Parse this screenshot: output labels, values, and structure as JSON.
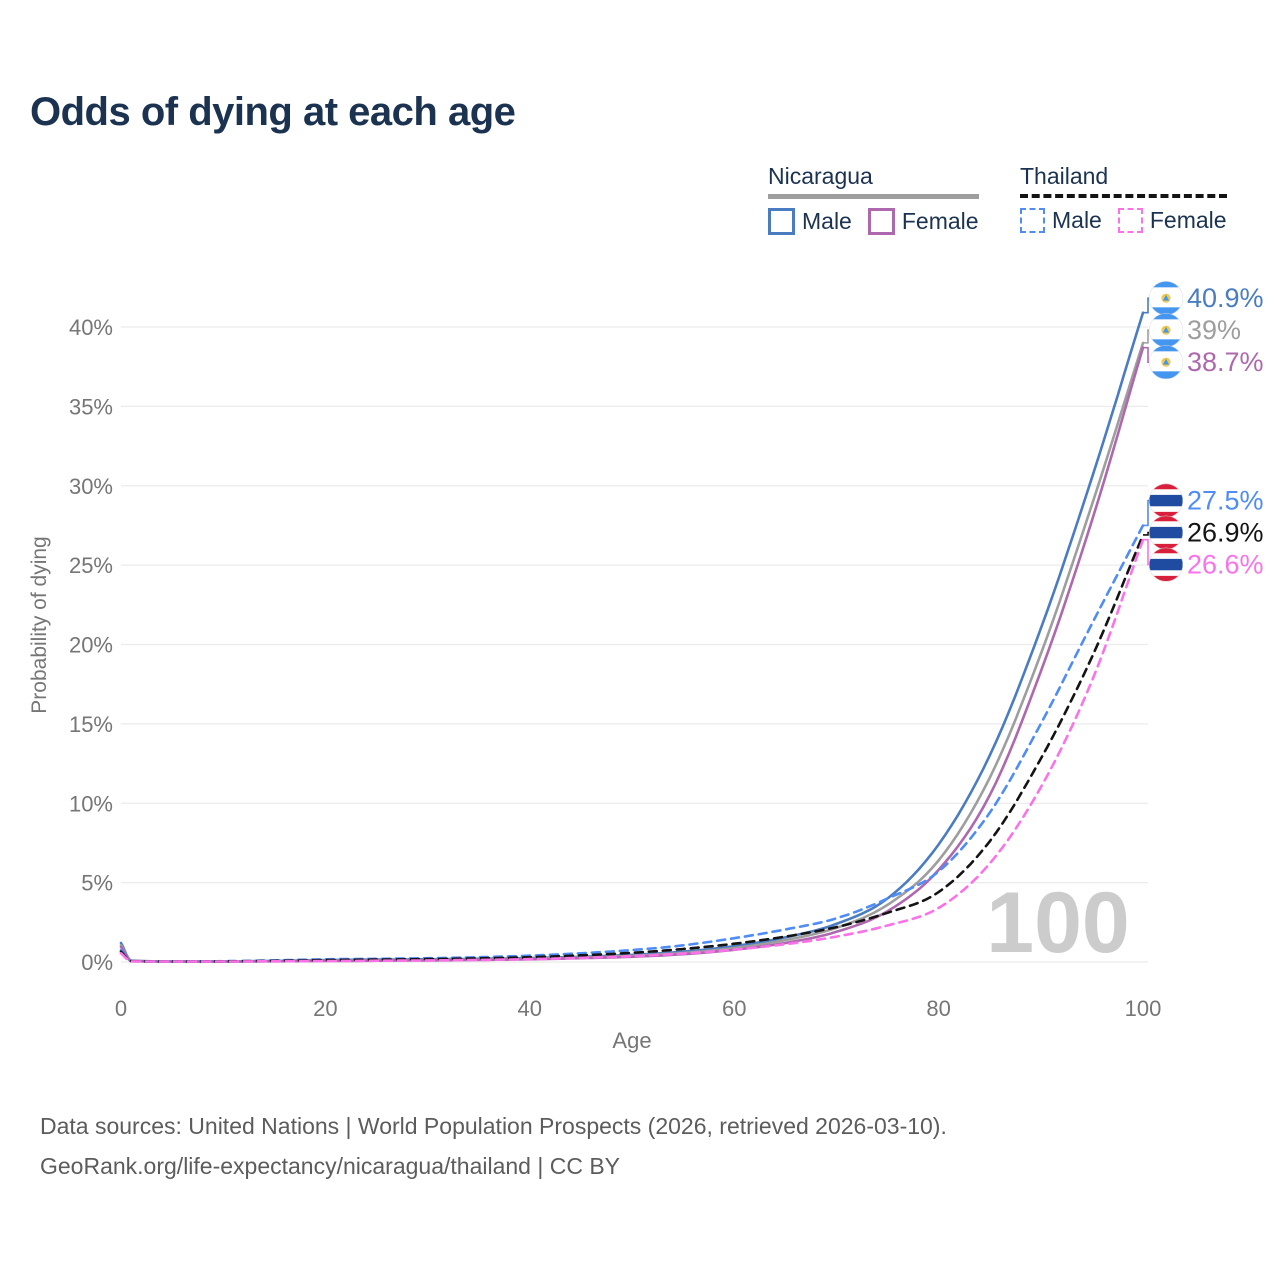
{
  "title": "Odds of dying at each age",
  "legend": {
    "groups": [
      {
        "label": "Nicaragua",
        "line_color": "#9e9e9e",
        "line_dash": false,
        "items": [
          {
            "label": "Male",
            "color": "#4a7cc2",
            "dash": false
          },
          {
            "label": "Female",
            "color": "#ae68ae",
            "dash": false
          }
        ]
      },
      {
        "label": "Thailand",
        "line_color": "#141414",
        "line_dash": true,
        "items": [
          {
            "label": "Male",
            "color": "#4f8cf5",
            "dash": true
          },
          {
            "label": "Female",
            "color": "#fb72e8",
            "dash": true
          }
        ]
      }
    ]
  },
  "watermark": "100",
  "footer": {
    "line1": "Data sources: United Nations | World Population Prospects (2026, retrieved 2026-03-10).",
    "line2": "GeoRank.org/life-expectancy/nicaragua/thailand | CC BY"
  },
  "chart_data": {
    "type": "line",
    "title": "Odds of dying at each age",
    "xlabel": "Age",
    "ylabel": "Probability of dying",
    "xlim": [
      0,
      100
    ],
    "ylim": [
      0,
      42
    ],
    "xticks": [
      0,
      20,
      40,
      60,
      80,
      100
    ],
    "yticks": [
      0,
      5,
      10,
      15,
      20,
      25,
      30,
      35,
      40
    ],
    "ytick_suffix": "%",
    "grid": "horizontal",
    "grid_color": "#ebebeb",
    "tick_color": "#767676",
    "watermark_color": "#cccccc",
    "x": [
      0,
      1,
      5,
      10,
      15,
      20,
      25,
      30,
      35,
      40,
      45,
      50,
      55,
      60,
      65,
      70,
      75,
      80,
      85,
      90,
      95,
      100
    ],
    "series": [
      {
        "name": "Nicaragua Male",
        "color": "#4a7cc2",
        "dash": false,
        "flag": "nicaragua",
        "cluster": "nicaragua",
        "end_label": "40.9%",
        "end_value": 40.9,
        "values": [
          1.2,
          0.09,
          0.04,
          0.04,
          0.07,
          0.12,
          0.15,
          0.17,
          0.2,
          0.25,
          0.33,
          0.45,
          0.65,
          1.0,
          1.55,
          2.4,
          4.0,
          7.4,
          13.0,
          21.0,
          30.5,
          40.9
        ]
      },
      {
        "name": "Nicaragua Both sexes",
        "color": "#9e9e9e",
        "dash": false,
        "flag": "nicaragua",
        "cluster": "nicaragua",
        "end_label": "39%",
        "end_value": 39,
        "values": [
          1.05,
          0.08,
          0.035,
          0.035,
          0.055,
          0.09,
          0.11,
          0.13,
          0.16,
          0.21,
          0.28,
          0.39,
          0.57,
          0.88,
          1.38,
          2.15,
          3.6,
          6.4,
          11.6,
          19.4,
          28.8,
          39.0
        ]
      },
      {
        "name": "Nicaragua Female",
        "color": "#ae68ae",
        "dash": false,
        "flag": "nicaragua",
        "cluster": "nicaragua",
        "end_label": "38.7%",
        "end_value": 38.7,
        "values": [
          0.95,
          0.07,
          0.03,
          0.03,
          0.045,
          0.06,
          0.08,
          0.1,
          0.13,
          0.17,
          0.24,
          0.33,
          0.49,
          0.77,
          1.2,
          1.9,
          3.2,
          5.8,
          10.5,
          18.3,
          27.8,
          38.7
        ]
      },
      {
        "name": "Thailand Male",
        "color": "#4f8cf5",
        "dash": true,
        "flag": "thailand",
        "cluster": "thailand",
        "end_label": "27.5%",
        "end_value": 27.5,
        "values": [
          0.75,
          0.06,
          0.04,
          0.05,
          0.1,
          0.17,
          0.2,
          0.24,
          0.3,
          0.4,
          0.55,
          0.75,
          1.05,
          1.5,
          2.05,
          2.75,
          4.0,
          5.7,
          9.4,
          15.0,
          21.3,
          27.5
        ]
      },
      {
        "name": "Thailand Both sexes",
        "color": "#141414",
        "dash": true,
        "flag": "thailand",
        "cluster": "thailand",
        "end_label": "26.9%",
        "end_value": 26.9,
        "values": [
          0.65,
          0.05,
          0.03,
          0.04,
          0.07,
          0.12,
          0.15,
          0.18,
          0.23,
          0.3,
          0.42,
          0.58,
          0.82,
          1.15,
          1.6,
          2.2,
          3.1,
          4.4,
          7.6,
          12.8,
          19.2,
          26.9
        ]
      },
      {
        "name": "Thailand Female",
        "color": "#fb72e8",
        "dash": true,
        "flag": "thailand",
        "cluster": "thailand",
        "end_label": "26.6%",
        "end_value": 26.6,
        "values": [
          0.55,
          0.04,
          0.025,
          0.03,
          0.045,
          0.06,
          0.08,
          0.1,
          0.13,
          0.18,
          0.26,
          0.37,
          0.53,
          0.78,
          1.12,
          1.6,
          2.3,
          3.4,
          6.2,
          11.0,
          17.7,
          26.6
        ]
      }
    ],
    "flag_colors": {
      "nicaragua": {
        "band": "#4596ef",
        "mid": "#ffffff",
        "emblem_gold": "#f2c94c",
        "emblem_tri": "#4596ef"
      },
      "thailand": {
        "red": "#d81f3c",
        "white": "#ffffff",
        "blue": "#1f4ba0"
      }
    }
  }
}
